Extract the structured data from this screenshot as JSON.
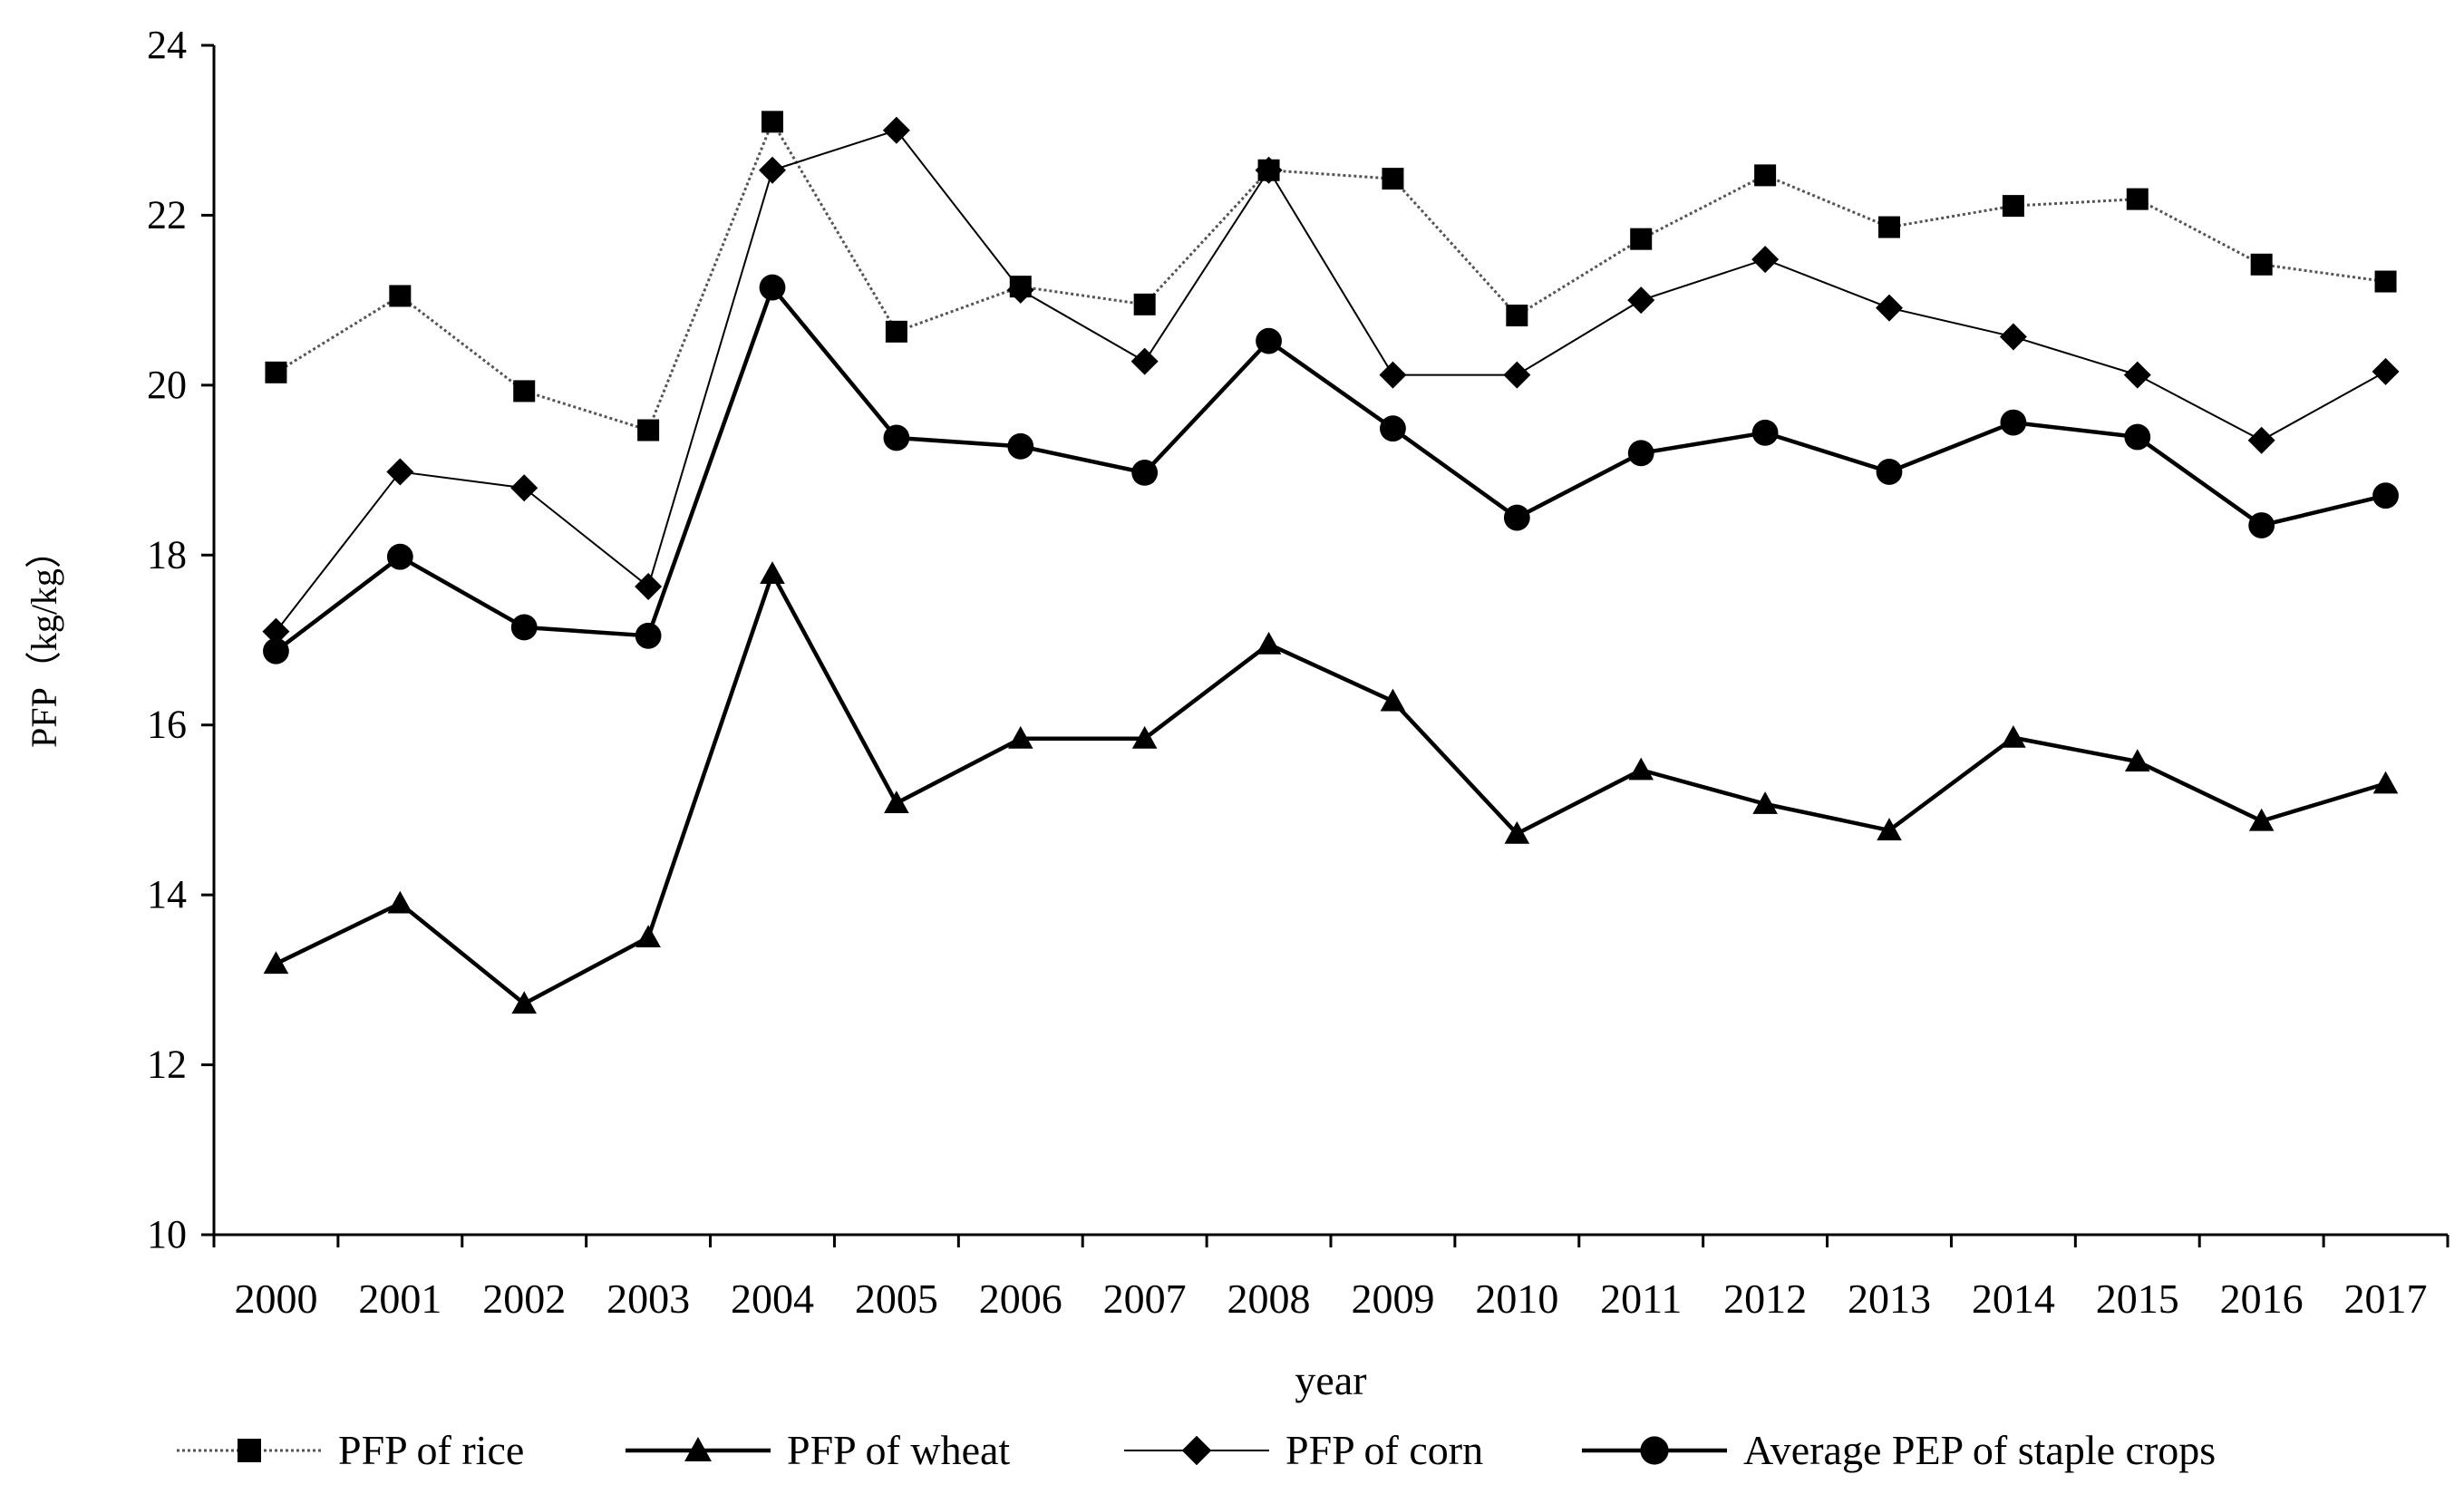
{
  "chart_data": {
    "type": "line",
    "title": "",
    "xlabel": "year",
    "ylabel": "PFP（kg/kg）",
    "ylim": [
      10,
      24
    ],
    "yticks": [
      10,
      12,
      14,
      16,
      18,
      20,
      22,
      24
    ],
    "grid": false,
    "legend_position": "bottom",
    "categories": [
      "2000",
      "2001",
      "2002",
      "2003",
      "2004",
      "2005",
      "2006",
      "2007",
      "2008",
      "2009",
      "2010",
      "2011",
      "2012",
      "2013",
      "2014",
      "2015",
      "2016",
      "2017"
    ],
    "series": [
      {
        "name": "PFP of rice",
        "marker": "square",
        "line": "dotted-thin",
        "values": [
          20.15,
          21.05,
          19.93,
          19.47,
          23.1,
          20.63,
          21.16,
          20.95,
          22.53,
          22.43,
          20.82,
          21.72,
          22.47,
          21.86,
          22.11,
          22.19,
          21.42,
          21.22
        ]
      },
      {
        "name": "PFP of wheat",
        "marker": "triangle",
        "line": "thick",
        "values": [
          13.19,
          13.9,
          12.72,
          13.5,
          17.78,
          15.08,
          15.84,
          15.84,
          16.95,
          16.28,
          14.72,
          15.47,
          15.07,
          14.76,
          15.85,
          15.57,
          14.87,
          15.31
        ]
      },
      {
        "name": "PFP of corn",
        "marker": "diamond",
        "line": "thin",
        "values": [
          17.1,
          18.98,
          18.79,
          17.63,
          22.53,
          23.0,
          21.12,
          20.28,
          22.53,
          20.12,
          20.12,
          21.0,
          21.48,
          20.91,
          20.57,
          20.12,
          19.35,
          20.16
        ]
      },
      {
        "name": "Average PEP of staple crops",
        "marker": "circle",
        "line": "thick",
        "values": [
          16.87,
          17.98,
          17.15,
          17.05,
          21.15,
          19.38,
          19.28,
          18.97,
          20.52,
          19.49,
          18.44,
          19.2,
          19.44,
          18.98,
          19.56,
          19.39,
          18.35,
          18.7
        ]
      }
    ]
  }
}
